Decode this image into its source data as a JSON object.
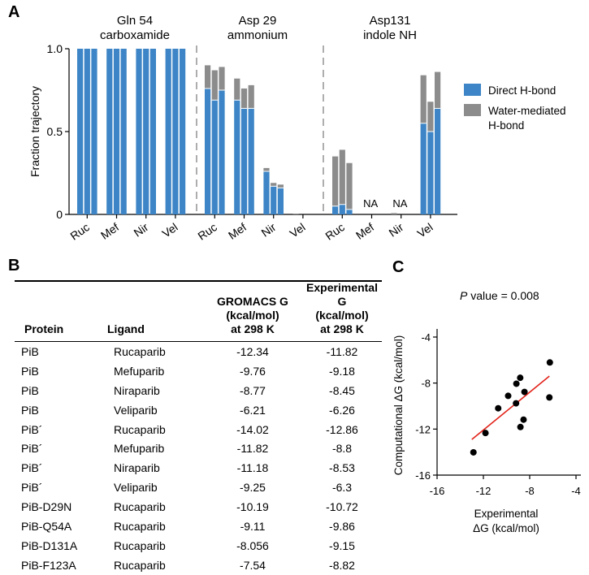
{
  "panels": {
    "a": "A",
    "b": "B",
    "c": "C"
  },
  "chart_data": [
    {
      "type": "bar",
      "stacked": true,
      "ylabel": "Fraction trajectory",
      "ylim": [
        0,
        1.0
      ],
      "yticks": [
        "0",
        "0.5",
        "1.0"
      ],
      "groups": [
        {
          "title": [
            "Gln 54",
            "carboxamide"
          ]
        },
        {
          "title": [
            "Asp 29",
            "ammonium"
          ]
        },
        {
          "title": [
            "Asp131",
            "indole NH"
          ]
        }
      ],
      "categories": [
        "Ruc",
        "Mef",
        "Nir",
        "Vel"
      ],
      "legend": {
        "direct": "Direct H-bond",
        "water": [
          "Water-mediated",
          "H-bond"
        ],
        "direct_color": "#3d85c6",
        "water_color": "#8c8c8c"
      },
      "na_label": "NA",
      "series": [
        {
          "group": 0,
          "category": "Ruc",
          "direct": [
            1.0,
            1.0,
            1.0
          ],
          "water": [
            0,
            0,
            0
          ]
        },
        {
          "group": 0,
          "category": "Mef",
          "direct": [
            1.0,
            1.0,
            1.0
          ],
          "water": [
            0,
            0,
            0
          ]
        },
        {
          "group": 0,
          "category": "Nir",
          "direct": [
            1.0,
            1.0,
            1.0
          ],
          "water": [
            0,
            0,
            0
          ]
        },
        {
          "group": 0,
          "category": "Vel",
          "direct": [
            1.0,
            1.0,
            1.0
          ],
          "water": [
            0,
            0,
            0
          ]
        },
        {
          "group": 1,
          "category": "Ruc",
          "direct": [
            0.76,
            0.69,
            0.75
          ],
          "water": [
            0.14,
            0.18,
            0.14
          ]
        },
        {
          "group": 1,
          "category": "Mef",
          "direct": [
            0.69,
            0.64,
            0.64
          ],
          "water": [
            0.13,
            0.12,
            0.14
          ]
        },
        {
          "group": 1,
          "category": "Nir",
          "direct": [
            0.26,
            0.17,
            0.16
          ],
          "water": [
            0.02,
            0.02,
            0.02
          ]
        },
        {
          "group": 1,
          "category": "Vel",
          "direct": [
            0.0,
            0.0,
            0.0
          ],
          "water": [
            0.005,
            0.0,
            0.0
          ]
        },
        {
          "group": 2,
          "category": "Ruc",
          "direct": [
            0.05,
            0.06,
            0.03
          ],
          "water": [
            0.3,
            0.33,
            0.28
          ]
        },
        {
          "group": 2,
          "category": "Mef",
          "direct": [
            0,
            0,
            0
          ],
          "water": [
            0,
            0,
            0
          ],
          "na": true
        },
        {
          "group": 2,
          "category": "Nir",
          "direct": [
            0,
            0,
            0
          ],
          "water": [
            0.008,
            0,
            0
          ],
          "na": true
        },
        {
          "group": 2,
          "category": "Vel",
          "direct": [
            0.55,
            0.5,
            0.64
          ],
          "water": [
            0.29,
            0.18,
            0.22
          ]
        }
      ]
    },
    {
      "type": "scatter",
      "pvalue_label": "P",
      "pvalue_text": " value = 0.008",
      "xlabel": [
        "Experimental",
        "ΔG (kcal/mol)"
      ],
      "ylabel": "Computational ΔG (kcal/mol)",
      "xlim": [
        -16,
        -4
      ],
      "ylim": [
        -16,
        -4
      ],
      "xticks": [
        "-16",
        "-12",
        "-8",
        "-4"
      ],
      "yticks": [
        "-4",
        "-8",
        "-12",
        "-16"
      ],
      "points": [
        {
          "x": -11.82,
          "y": -12.34
        },
        {
          "x": -9.18,
          "y": -9.76
        },
        {
          "x": -8.45,
          "y": -8.77
        },
        {
          "x": -6.26,
          "y": -6.21
        },
        {
          "x": -12.86,
          "y": -14.02
        },
        {
          "x": -8.8,
          "y": -11.82
        },
        {
          "x": -8.53,
          "y": -11.18
        },
        {
          "x": -6.3,
          "y": -9.25
        },
        {
          "x": -10.72,
          "y": -10.19
        },
        {
          "x": -9.86,
          "y": -9.11
        },
        {
          "x": -9.15,
          "y": -8.056
        },
        {
          "x": -8.82,
          "y": -7.54
        }
      ],
      "fit_line": {
        "x": [
          -13.0,
          -6.3
        ],
        "y": [
          -12.9,
          -7.4
        ],
        "color": "#e2231a"
      }
    }
  ],
  "table": {
    "headers": {
      "protein": "Protein",
      "ligand": "Ligand",
      "gromacs": [
        "GROMACS G",
        "(kcal/mol)",
        "at 298 K"
      ],
      "experimental": [
        "Experimental G",
        "(kcal/mol)",
        "at 298 K"
      ]
    },
    "rows": [
      {
        "protein": "PiB",
        "ligand": "Rucaparib",
        "gromacs": "-12.34",
        "experimental": "-11.82"
      },
      {
        "protein": "PiB",
        "ligand": "Mefuparib",
        "gromacs": "-9.76",
        "experimental": "-9.18"
      },
      {
        "protein": "PiB",
        "ligand": "Niraparib",
        "gromacs": "-8.77",
        "experimental": "-8.45"
      },
      {
        "protein": "PiB",
        "ligand": "Veliparib",
        "gromacs": "-6.21",
        "experimental": "-6.26"
      },
      {
        "protein": "PiB´",
        "ligand": "Rucaparib",
        "gromacs": "-14.02",
        "experimental": "-12.86"
      },
      {
        "protein": "PiB´",
        "ligand": "Mefuparib",
        "gromacs": "-11.82",
        "experimental": "-8.8"
      },
      {
        "protein": "PiB´",
        "ligand": "Niraparib",
        "gromacs": "-11.18",
        "experimental": "-8.53"
      },
      {
        "protein": "PiB´",
        "ligand": "Veliparib",
        "gromacs": "-9.25",
        "experimental": "-6.3"
      },
      {
        "protein": "PiB-D29N",
        "ligand": "Rucaparib",
        "gromacs": "-10.19",
        "experimental": "-10.72"
      },
      {
        "protein": "PiB-Q54A",
        "ligand": "Rucaparib",
        "gromacs": "-9.11",
        "experimental": "-9.86"
      },
      {
        "protein": "PiB-D131A",
        "ligand": "Rucaparib",
        "gromacs": "-8.056",
        "experimental": "-9.15"
      },
      {
        "protein": "PiB-F123A",
        "ligand": "Rucaparib",
        "gromacs": "-7.54",
        "experimental": "-8.82"
      }
    ]
  }
}
